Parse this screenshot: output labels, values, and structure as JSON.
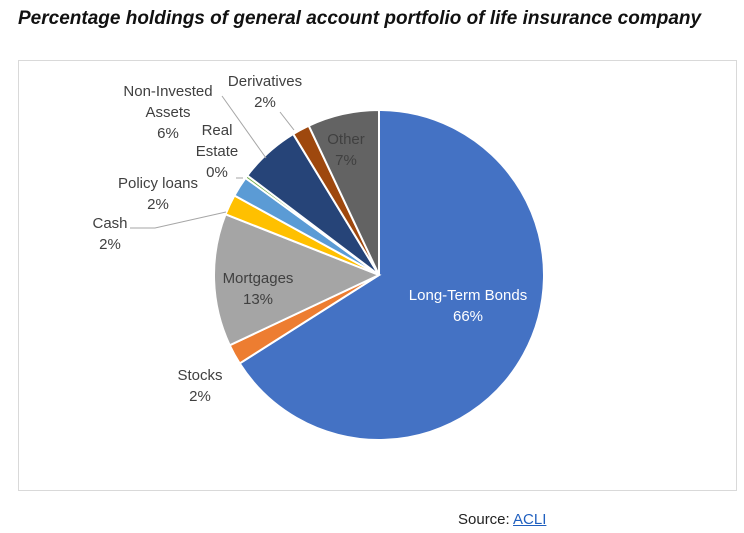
{
  "chart_data": {
    "type": "pie",
    "title": "Percentage holdings of general account portfolio of life insurance company",
    "slices": [
      {
        "name": "Long-Term Bonds",
        "pct_label": "66%",
        "value": 66,
        "color": "#4472c4"
      },
      {
        "name": "Stocks",
        "pct_label": "2%",
        "value": 2,
        "color": "#ed7d31"
      },
      {
        "name": "Mortgages",
        "pct_label": "13%",
        "value": 13,
        "color": "#a5a5a5"
      },
      {
        "name": "Cash",
        "pct_label": "2%",
        "value": 2,
        "color": "#ffc000"
      },
      {
        "name": "Policy loans",
        "pct_label": "2%",
        "value": 2,
        "color": "#5b9bd5"
      },
      {
        "name": "Real Estate",
        "pct_label": "0%",
        "value": 0.3,
        "color": "#70ad47"
      },
      {
        "name": "Non-Invested Assets",
        "pct_label": "6%",
        "value": 6,
        "color": "#264478"
      },
      {
        "name": "Derivatives",
        "pct_label": "2%",
        "value": 1.7,
        "color": "#9e480e"
      },
      {
        "name": "Other",
        "pct_label": "7%",
        "value": 7,
        "color": "#636363"
      }
    ]
  },
  "source": {
    "label": "Source:",
    "link": "ACLI"
  }
}
